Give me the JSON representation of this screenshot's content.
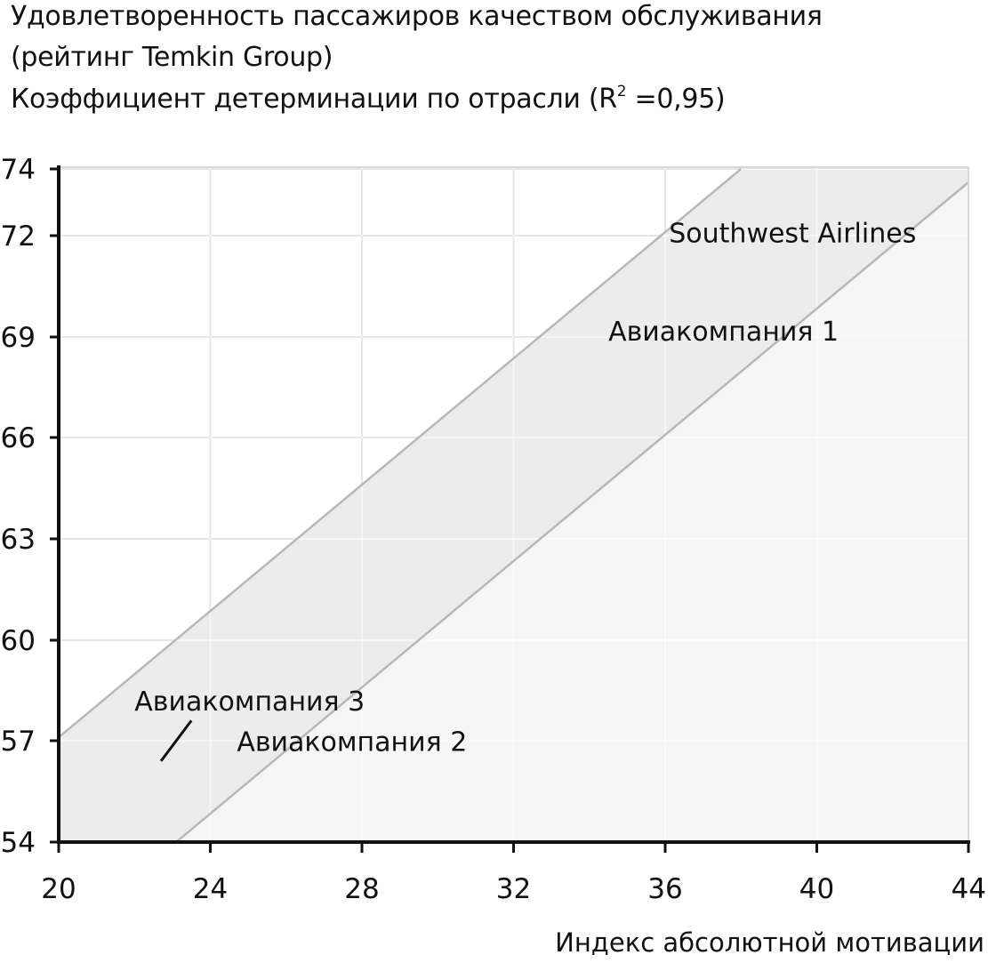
{
  "chart_data": {
    "type": "area",
    "title_lines": [
      "Удовлетворенность пассажиров качеством обслуживания",
      "(рейтинг Temkin Group)"
    ],
    "subtitle_prefix": "Коэффициент детерминации по отрасли (R",
    "subtitle_sup": "2",
    "subtitle_suffix": " =0,95)",
    "xlabel": "Индекс абсолютной мотивации",
    "ylabel": "",
    "xlim": [
      20,
      44
    ],
    "ylim": [
      54,
      74
    ],
    "x_ticks": [
      "20",
      "24",
      "28",
      "32",
      "36",
      "40",
      "44"
    ],
    "y_ticks": [
      "54",
      "57",
      "60",
      "63",
      "66",
      "69",
      "72",
      "74"
    ],
    "x_grid": [
      20,
      24,
      28,
      32,
      36,
      40,
      44
    ],
    "y_grid": [
      54,
      57,
      60,
      63,
      66,
      69,
      72,
      74
    ],
    "grid": true,
    "bands": [
      {
        "upper_line": [
          [
            20,
            57.1
          ],
          [
            38,
            74
          ]
        ],
        "lower_line": [
          [
            23.1,
            54
          ],
          [
            44,
            73.6
          ]
        ],
        "fill": "#ececec"
      },
      {
        "upper_line": [
          [
            23.1,
            54
          ],
          [
            44,
            73.6
          ]
        ],
        "fill": "#f6f6f6"
      }
    ],
    "annotations": [
      {
        "text": "Southwest Airlines",
        "x": 36.1,
        "y": 71.8
      },
      {
        "text": "Авиакомпания 1",
        "x": 34.5,
        "y": 68.9
      },
      {
        "text": "Авиакомпания 3",
        "x": 22.0,
        "y": 57.9
      },
      {
        "text": "Авиакомпания 2",
        "x": 24.7,
        "y": 56.7
      }
    ],
    "pointer": {
      "from": [
        23.5,
        57.6
      ],
      "to": [
        22.7,
        56.4
      ]
    },
    "colors": {
      "grid": "#c8c8c8",
      "band_line": "#b8b8b8",
      "axis": "#111111"
    }
  }
}
